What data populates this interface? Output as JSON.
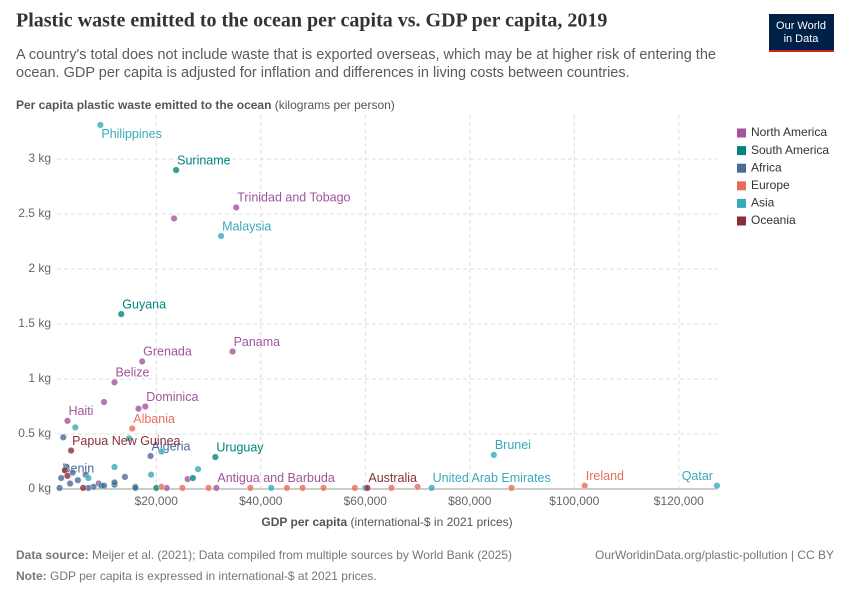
{
  "chart_data": {
    "type": "scatter",
    "title": "Plastic waste emitted to the ocean per capita vs. GDP per capita, 2019",
    "subtitle": "A country's total does not include waste that is exported overseas, which may be at higher risk of entering the ocean. GDP per capita is adjusted for inflation and differences in living costs between countries.",
    "y_axis_title": "Per capita plastic waste emitted to the ocean",
    "y_axis_unit": "(kilograms per person)",
    "x_axis_title": "GDP per capita",
    "x_axis_unit": "(international-$ in 2021 prices)",
    "source_label": "Data source:",
    "source": "Meijer et al. (2021); Data compiled from multiple sources by World Bank (2025)",
    "url": "OurWorldinData.org/plastic-pollution | CC BY",
    "note_label": "Note:",
    "note": "GDP per capita is expressed in international-$ at 2021 prices.",
    "logo": [
      "Our World",
      "in Data"
    ],
    "xlim": [
      1000,
      127500
    ],
    "ylim": [
      0,
      3.4
    ],
    "xticks": [
      {
        "value": 20000,
        "label": "$20,000"
      },
      {
        "value": 40000,
        "label": "$40,000"
      },
      {
        "value": 60000,
        "label": "$60,000"
      },
      {
        "value": 80000,
        "label": "$80,000"
      },
      {
        "value": 100000,
        "label": "$100,000"
      },
      {
        "value": 120000,
        "label": "$120,000"
      }
    ],
    "yticks": [
      {
        "value": 0,
        "label": "0 kg"
      },
      {
        "value": 0.5,
        "label": "0.5 kg"
      },
      {
        "value": 1,
        "label": "1 kg"
      },
      {
        "value": 1.5,
        "label": "1.5 kg"
      },
      {
        "value": 2,
        "label": "2 kg"
      },
      {
        "value": 2.5,
        "label": "2.5 kg"
      },
      {
        "value": 3,
        "label": "3 kg"
      }
    ],
    "grid": true,
    "legend_position": "right",
    "series": [
      {
        "name": "North America",
        "color": "#a2559c",
        "x": [
          35300,
          23400,
          34600,
          17300,
          12000,
          17900,
          16600,
          3000,
          10000,
          31500,
          22000,
          9000,
          26000
        ],
        "y": [
          2.56,
          2.46,
          1.25,
          1.16,
          0.97,
          0.75,
          0.73,
          0.62,
          0.79,
          0.01,
          0.01,
          0.05,
          0.09
        ],
        "labels": [
          "Trinidad and Tobago",
          null,
          "Panama",
          "Grenada",
          "Belize",
          "Dominica",
          null,
          "Haiti",
          null,
          "Antigua and Barbuda",
          null,
          null,
          null
        ]
      },
      {
        "name": "South America",
        "color": "#00847e",
        "x": [
          23800,
          13300,
          31300,
          16000,
          9500,
          27000,
          20000,
          12000
        ],
        "y": [
          2.9,
          1.59,
          0.29,
          0.02,
          0.03,
          0.1,
          0.01,
          0.04
        ],
        "labels": [
          "Suriname",
          "Guyana",
          "Uruguay",
          null,
          null,
          null,
          null,
          null
        ]
      },
      {
        "name": "Africa",
        "color": "#4c6a9c",
        "x": [
          1800,
          18900,
          2200,
          3500,
          5000,
          6500,
          8000,
          1500,
          14000,
          12000,
          4000,
          7000,
          10000,
          16000,
          2800
        ],
        "y": [
          0.1,
          0.3,
          0.47,
          0.05,
          0.08,
          0.13,
          0.02,
          0.01,
          0.11,
          0.06,
          0.15,
          0.01,
          0.03,
          0.01,
          0.2
        ],
        "labels": [
          "Benin",
          "Algeria",
          null,
          null,
          null,
          null,
          null,
          null,
          null,
          null,
          null,
          null,
          null,
          null,
          null
        ]
      },
      {
        "name": "Europe",
        "color": "#e56e5a",
        "x": [
          15400,
          102000,
          21000,
          25000,
          38000,
          45000,
          52000,
          58000,
          65000,
          70000,
          88000,
          48000,
          30000
        ],
        "y": [
          0.55,
          0.03,
          0.02,
          0.01,
          0.01,
          0.01,
          0.01,
          0.01,
          0.01,
          0.02,
          0.01,
          0.01,
          0.01
        ],
        "labels": [
          "Albania",
          "Ireland",
          null,
          null,
          null,
          null,
          null,
          null,
          null,
          null,
          null,
          null,
          null
        ]
      },
      {
        "name": "Asia",
        "color": "#38aaba",
        "x": [
          9300,
          32400,
          84600,
          72700,
          127300,
          4500,
          14800,
          12000,
          28000,
          19000,
          7000,
          21000,
          42000,
          60000
        ],
        "y": [
          3.31,
          2.3,
          0.31,
          0.01,
          0.03,
          0.56,
          0.46,
          0.2,
          0.18,
          0.13,
          0.1,
          0.34,
          0.01,
          0.01
        ],
        "labels": [
          "Philippines",
          "Malaysia",
          "Brunei",
          "United Arab Emirates",
          "Qatar",
          null,
          null,
          null,
          null,
          null,
          null,
          null,
          null,
          null
        ]
      },
      {
        "name": "Oceania",
        "color": "#883039",
        "x": [
          3700,
          60400,
          2500,
          6000,
          3000
        ],
        "y": [
          0.35,
          0.01,
          0.17,
          0.01,
          0.12
        ],
        "labels": [
          "Papua New Guinea",
          "Australia",
          null,
          null,
          null
        ]
      }
    ]
  }
}
